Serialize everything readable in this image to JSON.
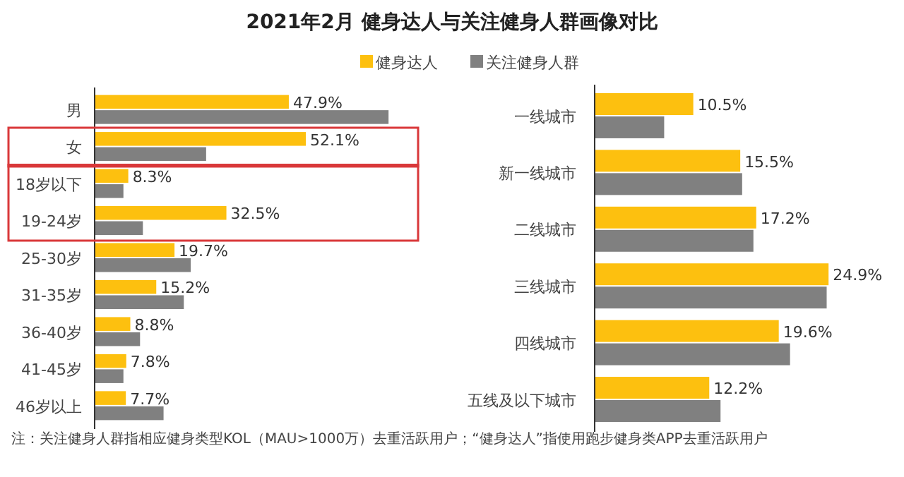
{
  "chart_data": [
    {
      "type": "bar",
      "orientation": "horizontal",
      "title": "2021年2月 健身达人与关注健身人群画像对比",
      "legend": "top",
      "annotations": [
        "注：关注健身人群指相应健身类型KOL（MAU>1000万）去重活跃用户；“健身达人”指使用跑步健身类APP去重活跃用户"
      ],
      "categories": [
        "男",
        "女",
        "18岁以下",
        "19-24岁",
        "25-30岁",
        "31-35岁",
        "36-40岁",
        "41-45岁",
        "46岁以上"
      ],
      "tick_labels": "y",
      "series": [
        {
          "name": "健身达人",
          "color": "#fdc00f",
          "values": [
            47.9,
            52.1,
            8.3,
            32.5,
            19.7,
            15.2,
            8.8,
            7.8,
            7.7
          ],
          "value_labels": [
            "47.9%",
            "52.1%",
            "8.3%",
            "32.5%",
            "19.7%",
            "15.2%",
            "8.8%",
            "7.8%",
            "7.7%"
          ]
        },
        {
          "name": "关注健身人群",
          "color": "#808080",
          "values": [
            72.5,
            27.5,
            7.1,
            11.9,
            23.7,
            22.0,
            11.2,
            7.1,
            17.0
          ]
        }
      ]
    },
    {
      "type": "bar",
      "orientation": "horizontal",
      "categories": [
        "一线城市",
        "新一线城市",
        "二线城市",
        "三线城市",
        "四线城市",
        "五线及以下城市"
      ],
      "tick_labels": "y",
      "series": [
        {
          "color": "#fdc00f",
          "values": [
            10.5,
            15.5,
            17.2,
            24.9,
            19.6,
            12.2
          ],
          "value_labels": [
            "10.5%",
            "15.5%",
            "17.2%",
            "24.9%",
            "19.6%",
            "12.2%"
          ]
        },
        {
          "color": "#808080",
          "values": [
            7.4,
            15.7,
            16.9,
            24.7,
            20.8,
            13.4
          ]
        }
      ]
    }
  ]
}
